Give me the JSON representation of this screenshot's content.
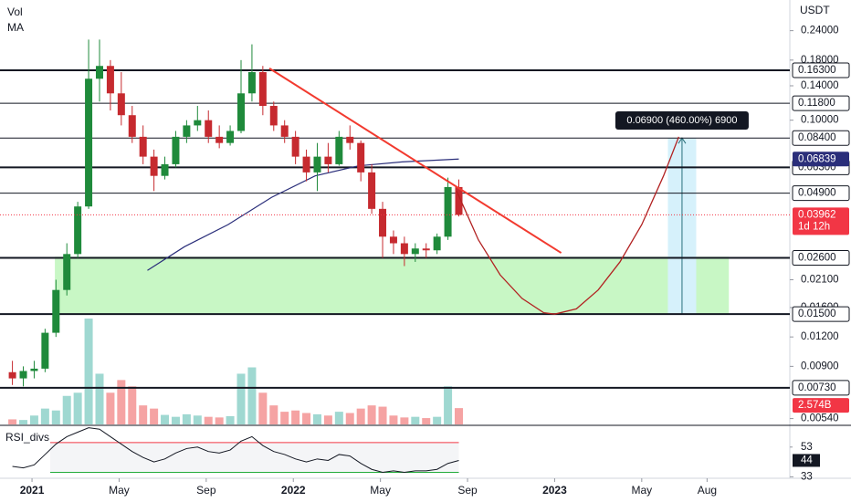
{
  "chart_data": {
    "type": "candlestick",
    "price_unit": "USDT",
    "indicators": [
      "Vol",
      "MA"
    ],
    "rsi_title": "RSI_divs",
    "log_scale": true,
    "xlim": [
      -1.47,
      34.8
    ],
    "ylim": [
      0.0051,
      0.324
    ],
    "xticks": [
      {
        "value": 0,
        "label": "2021"
      },
      {
        "value": 4,
        "label": "May"
      },
      {
        "value": 8,
        "label": "Sep"
      },
      {
        "value": 12,
        "label": "2022"
      },
      {
        "value": 16,
        "label": "May"
      },
      {
        "value": 20,
        "label": "Sep"
      },
      {
        "value": 24,
        "label": "2023"
      },
      {
        "value": 28,
        "label": "May"
      },
      {
        "value": 31,
        "label": "Aug"
      }
    ],
    "yticks": [
      {
        "value": 0.24,
        "label": "0.24000"
      },
      {
        "value": 0.18,
        "label": "0.18000"
      },
      {
        "value": 0.14,
        "label": "0.14000"
      },
      {
        "value": 0.1,
        "label": "0.10000"
      },
      {
        "value": 0.021,
        "label": "0.02100"
      },
      {
        "value": 0.016,
        "label": "0.01600"
      },
      {
        "value": 0.012,
        "label": "0.01200"
      },
      {
        "value": 0.009,
        "label": "0.00900"
      },
      {
        "value": 0.0054,
        "label": "0.00540"
      }
    ],
    "up_color": "#1f8a3b",
    "down_color": "#c62a2f",
    "x": [
      -0.9,
      -0.4,
      0.1,
      0.6,
      1.1,
      1.6,
      2.1,
      2.6,
      3.1,
      3.6,
      4.1,
      4.6,
      5.1,
      5.6,
      6.1,
      6.6,
      7.1,
      7.6,
      8.1,
      8.6,
      9.1,
      9.6,
      10.1,
      10.6,
      11.1,
      11.6,
      12.1,
      12.6,
      13.1,
      13.6,
      14.1,
      14.6,
      15.1,
      15.6,
      16.1,
      16.6,
      17.1,
      17.6,
      18.1,
      18.6,
      19.1,
      19.6
    ],
    "open": [
      0.0085,
      0.008,
      0.0086,
      0.0088,
      0.0125,
      0.019,
      0.027,
      0.043,
      0.15,
      0.17,
      0.13,
      0.105,
      0.085,
      0.07,
      0.058,
      0.065,
      0.085,
      0.095,
      0.1,
      0.085,
      0.08,
      0.09,
      0.13,
      0.16,
      0.115,
      0.095,
      0.085,
      0.07,
      0.06,
      0.07,
      0.065,
      0.085,
      0.08,
      0.06,
      0.042,
      0.032,
      0.03,
      0.027,
      0.0285,
      0.028,
      0.032,
      0.052
    ],
    "high": [
      0.0095,
      0.009,
      0.0095,
      0.013,
      0.021,
      0.03,
      0.045,
      0.22,
      0.22,
      0.18,
      0.16,
      0.115,
      0.095,
      0.075,
      0.07,
      0.09,
      0.1,
      0.115,
      0.11,
      0.095,
      0.095,
      0.18,
      0.21,
      0.17,
      0.12,
      0.1,
      0.09,
      0.075,
      0.08,
      0.08,
      0.09,
      0.095,
      0.082,
      0.065,
      0.045,
      0.034,
      0.032,
      0.03,
      0.03,
      0.033,
      0.057,
      0.056
    ],
    "low": [
      0.0075,
      0.0074,
      0.008,
      0.0085,
      0.012,
      0.018,
      0.026,
      0.042,
      0.12,
      0.11,
      0.095,
      0.08,
      0.065,
      0.05,
      0.056,
      0.063,
      0.08,
      0.09,
      0.08,
      0.076,
      0.078,
      0.088,
      0.12,
      0.105,
      0.09,
      0.08,
      0.065,
      0.055,
      0.05,
      0.06,
      0.064,
      0.075,
      0.055,
      0.04,
      0.026,
      0.027,
      0.024,
      0.025,
      0.026,
      0.027,
      0.031,
      0.039
    ],
    "close": [
      0.008,
      0.0086,
      0.0088,
      0.0125,
      0.019,
      0.027,
      0.043,
      0.15,
      0.17,
      0.13,
      0.105,
      0.085,
      0.07,
      0.058,
      0.065,
      0.085,
      0.095,
      0.1,
      0.085,
      0.08,
      0.09,
      0.13,
      0.16,
      0.115,
      0.095,
      0.085,
      0.07,
      0.06,
      0.07,
      0.065,
      0.085,
      0.08,
      0.06,
      0.042,
      0.032,
      0.03,
      0.027,
      0.0285,
      0.028,
      0.032,
      0.052,
      0.0396
    ],
    "volume": [
      0.8,
      0.7,
      1.4,
      2.5,
      2.2,
      4.5,
      5,
      16.7,
      8,
      5,
      7,
      6,
      3,
      2.5,
      1.5,
      1.2,
      1.6,
      1.4,
      1.2,
      1.1,
      1.3,
      8,
      9,
      5,
      3,
      2,
      2.2,
      1.8,
      1.6,
      1.4,
      2,
      1.8,
      2.5,
      3,
      2.8,
      1.4,
      1.1,
      1.2,
      1,
      1.2,
      6,
      2.574
    ],
    "vlim": [
      0,
      18
    ],
    "volume_up_color": "#9fd8d1",
    "volume_down_color": "#f5a3a3",
    "volume_last": {
      "value": 2.574,
      "label": "2.574B"
    },
    "ma": {
      "color": "#2a2e7a",
      "x": [
        5.3,
        7,
        9,
        11,
        13,
        15,
        17,
        19.6
      ],
      "values": [
        0.023,
        0.029,
        0.036,
        0.047,
        0.058,
        0.064,
        0.0665,
        0.0684
      ],
      "last": {
        "value": 0.06839,
        "label": "0.06839"
      }
    },
    "last_price": {
      "value": 0.03962,
      "label": "0.03962",
      "countdown": "1d 12h",
      "color": "#f23645"
    },
    "levels": {
      "values": [
        0.163,
        0.118,
        0.084,
        0.063,
        0.049,
        0.026,
        0.015,
        0.0073
      ],
      "value_labels": [
        "0.16300",
        "0.11800",
        "0.08400",
        "0.06300",
        "0.04900",
        "0.02600",
        "0.01500",
        "0.00730"
      ],
      "thick": [
        true,
        false,
        false,
        true,
        false,
        true,
        true,
        true
      ]
    },
    "zone": {
      "x": [
        1.05,
        32
      ],
      "values": [
        0.015,
        0.0263
      ],
      "color": "#c8f7c5"
    },
    "trendline": {
      "x": [
        10.9,
        24.3
      ],
      "values": [
        0.166,
        0.0273
      ],
      "color": "#f23a2f"
    },
    "projection_curve": {
      "x": [
        19.5,
        20.5,
        21.5,
        22.5,
        23.5,
        24,
        25,
        26,
        27,
        28,
        29,
        29.7
      ],
      "values": [
        0.05,
        0.031,
        0.022,
        0.0175,
        0.0152,
        0.015,
        0.0158,
        0.019,
        0.025,
        0.036,
        0.058,
        0.085
      ],
      "color": "#b22222"
    },
    "measure": {
      "x": [
        29.2,
        30.5
      ],
      "values": [
        0.015,
        0.084
      ],
      "label": "0.06900 (460.00%) 6900",
      "color": "#d6f1fb"
    },
    "rsi": {
      "ylim": [
        32,
        67
      ],
      "yticks": [
        53,
        33
      ],
      "boxes": [
        53,
        44
      ],
      "upper": 56,
      "lower": 36,
      "values": [
        40,
        39,
        41,
        48,
        55,
        60,
        63,
        66,
        65,
        60,
        55,
        50,
        46,
        43,
        45,
        49,
        52,
        53,
        50,
        49,
        51,
        57,
        60,
        54,
        50,
        48,
        45,
        43,
        45,
        44,
        48,
        47,
        42,
        38,
        36,
        37,
        36,
        37,
        37,
        38,
        42,
        44
      ]
    }
  }
}
